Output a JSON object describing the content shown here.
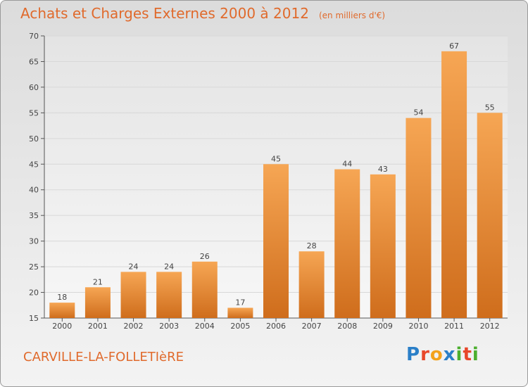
{
  "title": "Achats et Charges Externes 2000 à 2012",
  "unit": "(en milliers d'€)",
  "commune": "CARVILLE-LA-FOLLETIèRE",
  "logo": {
    "p": "P",
    "r": "r",
    "o": "o",
    "x": "x",
    "i": "i",
    "t": "t",
    "i2": "i"
  },
  "colors": {
    "bar_light": "#f6a654",
    "bar_dark": "#cf6d1c",
    "axis": "#555555",
    "grid": "#d8d8d8",
    "accent": "#e06a2c"
  },
  "chart_data": {
    "type": "bar",
    "title": "Achats et Charges Externes 2000 à 2012",
    "xlabel": "",
    "ylabel": "(en milliers d'€)",
    "categories": [
      "2000",
      "2001",
      "2002",
      "2003",
      "2004",
      "2005",
      "2006",
      "2007",
      "2008",
      "2009",
      "2010",
      "2011",
      "2012"
    ],
    "values": [
      18,
      21,
      24,
      24,
      26,
      17,
      45,
      28,
      44,
      43,
      54,
      67,
      55
    ],
    "ylim": [
      15,
      70
    ],
    "yticks": [
      15,
      20,
      25,
      30,
      35,
      40,
      45,
      50,
      55,
      60,
      65,
      70
    ],
    "grid": true
  }
}
